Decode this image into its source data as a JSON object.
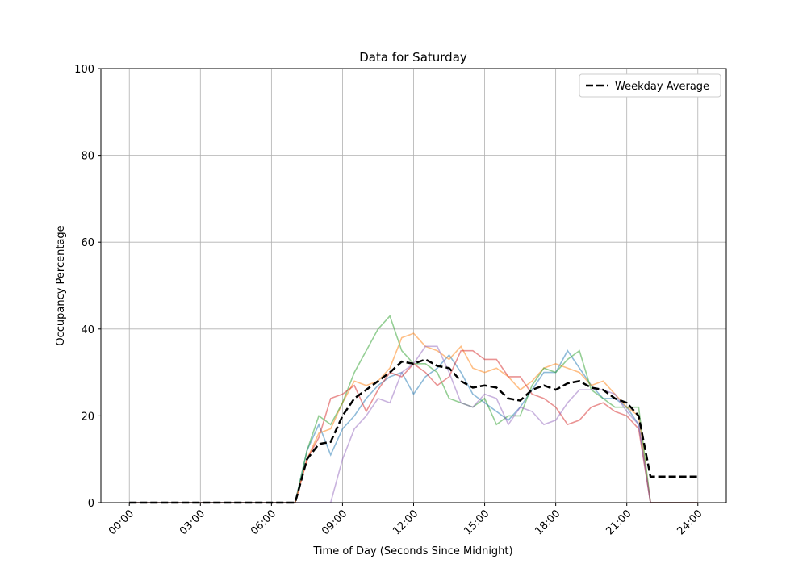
{
  "chart_data": {
    "type": "line",
    "title": "Data for Saturday",
    "x_label": "Time of Day (Seconds Since Midnight)",
    "y_label": "Occupancy Percentage",
    "x": [
      0,
      1800,
      3600,
      5400,
      7200,
      9000,
      10800,
      12600,
      14400,
      16200,
      18000,
      19800,
      21600,
      23400,
      25200,
      27000,
      28800,
      30600,
      32400,
      34200,
      36000,
      37800,
      39600,
      41400,
      43200,
      45000,
      46800,
      48600,
      50400,
      52200,
      54000,
      55800,
      57600,
      59400,
      61200,
      63000,
      64800,
      66600,
      68400,
      70200,
      72000,
      73800,
      75600,
      77400,
      79200,
      81000,
      82800,
      84600,
      86400
    ],
    "series": [
      {
        "color": "#1f77b4",
        "values": [
          0,
          0,
          0,
          0,
          0,
          0,
          0,
          0,
          0,
          0,
          0,
          0,
          0,
          0,
          0,
          12,
          18,
          11,
          17,
          20,
          24,
          27,
          29,
          30,
          25,
          29,
          31,
          34,
          30,
          25,
          23,
          21,
          19,
          22,
          26,
          30,
          30,
          35,
          31,
          27,
          24,
          24,
          22,
          18,
          0,
          0,
          0,
          0,
          0
        ]
      },
      {
        "color": "#ff7f0e",
        "values": [
          0,
          0,
          0,
          0,
          0,
          0,
          0,
          0,
          0,
          0,
          0,
          0,
          0,
          0,
          0,
          10,
          16,
          17,
          23,
          28,
          27,
          28,
          31,
          38,
          39,
          36,
          35,
          33,
          36,
          31,
          30,
          31,
          29,
          26,
          28,
          31,
          32,
          31,
          30,
          27,
          28,
          25,
          22,
          20,
          0,
          0,
          0,
          0,
          0
        ]
      },
      {
        "color": "#2ca02c",
        "values": [
          0,
          0,
          0,
          0,
          0,
          0,
          0,
          0,
          0,
          0,
          0,
          0,
          0,
          0,
          0,
          12,
          20,
          18,
          23,
          30,
          35,
          40,
          43,
          35,
          32,
          32,
          30,
          24,
          23,
          22,
          24,
          18,
          20,
          20,
          27,
          31,
          30,
          33,
          35,
          26,
          24,
          22,
          22,
          22,
          0,
          0,
          0,
          0,
          0
        ]
      },
      {
        "color": "#d62728",
        "values": [
          0,
          0,
          0,
          0,
          0,
          0,
          0,
          0,
          0,
          0,
          0,
          0,
          0,
          0,
          0,
          10,
          15,
          24,
          25,
          27,
          21,
          26,
          30,
          29,
          32,
          30,
          27,
          29,
          35,
          35,
          33,
          33,
          29,
          29,
          25,
          24,
          22,
          18,
          19,
          22,
          23,
          21,
          20,
          17,
          0,
          0,
          0,
          0,
          0
        ]
      },
      {
        "color": "#9467bd",
        "values": [
          0,
          0,
          0,
          0,
          0,
          0,
          0,
          0,
          0,
          0,
          0,
          0,
          0,
          0,
          0,
          0,
          0,
          0,
          10,
          17,
          20,
          24,
          23,
          30,
          32,
          36,
          36,
          30,
          23,
          22,
          25,
          24,
          18,
          22,
          21,
          18,
          19,
          23,
          26,
          26,
          26,
          25,
          21,
          18,
          0,
          0,
          0,
          0,
          0
        ]
      },
      {
        "name": "Weekday Average",
        "color": "#000000",
        "dashed": true,
        "values": [
          0,
          0,
          0,
          0,
          0,
          0,
          0,
          0,
          0,
          0,
          0,
          0,
          0,
          0,
          0,
          10,
          13.5,
          14,
          20,
          24,
          26,
          28,
          30,
          32.5,
          32,
          33,
          31.5,
          31,
          28,
          26.5,
          27,
          26.5,
          24,
          23.5,
          26,
          27,
          26,
          27.5,
          28,
          26.5,
          26,
          24,
          23,
          20,
          6,
          6,
          6,
          6,
          6
        ]
      }
    ],
    "xlim": [
      -4320,
      90720
    ],
    "xticks": [
      {
        "value": 0,
        "label": "00:00"
      },
      {
        "value": 10800,
        "label": "03:00"
      },
      {
        "value": 21600,
        "label": "06:00"
      },
      {
        "value": 32400,
        "label": "09:00"
      },
      {
        "value": 43200,
        "label": "12:00"
      },
      {
        "value": 54000,
        "label": "15:00"
      },
      {
        "value": 64800,
        "label": "18:00"
      },
      {
        "value": 75600,
        "label": "21:00"
      },
      {
        "value": 86400,
        "label": "24:00"
      }
    ],
    "ylim": [
      0,
      100
    ],
    "yticks": [
      0,
      20,
      40,
      60,
      80,
      100
    ],
    "grid": true,
    "legend": "upper right"
  }
}
